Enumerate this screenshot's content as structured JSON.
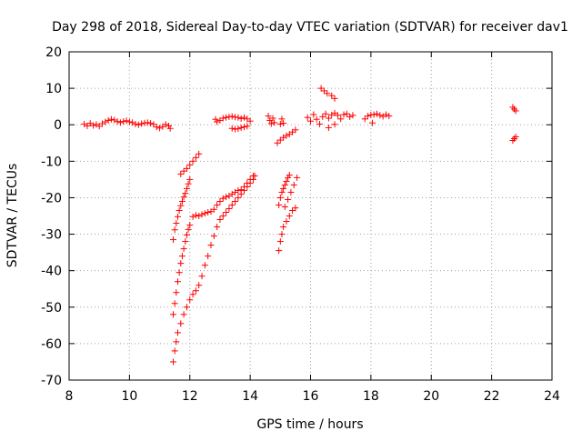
{
  "chart_data": {
    "type": "scatter",
    "title": "Day 298 of 2018, Sidereal Day-to-day VTEC variation (SDTVAR) for receiver dav1",
    "xlabel": "GPS time / hours",
    "ylabel": "SDTVAR / TECUs",
    "xlim": [
      8,
      24
    ],
    "ylim": [
      -70,
      20
    ],
    "x_ticks": [
      8,
      10,
      12,
      14,
      16,
      18,
      20,
      22,
      24
    ],
    "y_ticks": [
      -70,
      -60,
      -50,
      -40,
      -30,
      -20,
      -10,
      0,
      10,
      20
    ],
    "x_tick_labels": [
      "8",
      "10",
      "12",
      "14",
      "16",
      "18",
      "20",
      "22",
      "24"
    ],
    "y_tick_labels": [
      "-70",
      "-60",
      "-50",
      "-40",
      "-30",
      "-20",
      "-10",
      "0",
      "10",
      "20"
    ],
    "grid": true,
    "marker": "plus",
    "marker_color": "#ff0000",
    "series": [
      {
        "points": [
          [
            8.5,
            0.2
          ],
          [
            8.6,
            -0.3
          ],
          [
            8.7,
            0.4
          ],
          [
            8.8,
            -0.2
          ],
          [
            8.9,
            0.1
          ],
          [
            9.0,
            -0.4
          ],
          [
            9.1,
            0.3
          ],
          [
            9.2,
            0.8
          ],
          [
            9.3,
            1.2
          ],
          [
            9.4,
            1.5
          ],
          [
            9.5,
            1.3
          ],
          [
            9.6,
            0.9
          ],
          [
            9.7,
            0.6
          ],
          [
            9.8,
            0.9
          ],
          [
            9.9,
            1.1
          ],
          [
            10.0,
            0.8
          ],
          [
            10.1,
            0.6
          ],
          [
            10.2,
            0.2
          ],
          [
            10.3,
            0.0
          ],
          [
            10.4,
            0.3
          ],
          [
            10.5,
            0.5
          ],
          [
            10.6,
            0.6
          ],
          [
            10.7,
            0.4
          ],
          [
            10.8,
            0.1
          ],
          [
            10.9,
            -0.6
          ],
          [
            11.0,
            -0.9
          ],
          [
            11.1,
            -0.5
          ],
          [
            11.2,
            0.1
          ],
          [
            11.3,
            -0.3
          ],
          [
            11.35,
            -1.0
          ],
          [
            12.85,
            1.5
          ],
          [
            12.9,
            0.8
          ],
          [
            13.0,
            1.2
          ],
          [
            13.1,
            1.8
          ],
          [
            13.2,
            2.0
          ],
          [
            13.3,
            2.2
          ],
          [
            13.4,
            2.3
          ],
          [
            13.5,
            2.1
          ],
          [
            13.6,
            2.0
          ],
          [
            13.7,
            1.7
          ],
          [
            13.8,
            2.0
          ],
          [
            13.9,
            1.6
          ],
          [
            14.0,
            1.0
          ],
          [
            13.4,
            -1.0
          ],
          [
            13.5,
            -1.2
          ],
          [
            13.6,
            -1.1
          ],
          [
            13.7,
            -0.8
          ],
          [
            13.8,
            -0.6
          ],
          [
            13.9,
            -0.4
          ],
          [
            14.6,
            2.4
          ],
          [
            14.65,
            1.2
          ],
          [
            14.7,
            0.3
          ],
          [
            14.75,
            1.8
          ],
          [
            14.8,
            0.6
          ],
          [
            15.0,
            0.2
          ],
          [
            15.05,
            1.6
          ],
          [
            15.1,
            0.4
          ],
          [
            15.9,
            2.0
          ],
          [
            16.0,
            1.0
          ],
          [
            16.1,
            2.8
          ],
          [
            16.2,
            1.5
          ],
          [
            16.3,
            0.2
          ],
          [
            16.4,
            2.2
          ],
          [
            16.5,
            3.0
          ],
          [
            16.6,
            1.8
          ],
          [
            16.7,
            2.7
          ],
          [
            16.8,
            3.2
          ],
          [
            16.9,
            2.6
          ],
          [
            17.0,
            1.6
          ],
          [
            17.1,
            2.8
          ],
          [
            17.2,
            3.0
          ],
          [
            17.3,
            2.2
          ],
          [
            17.4,
            2.6
          ],
          [
            16.6,
            -0.8
          ],
          [
            16.8,
            0.1
          ],
          [
            17.8,
            1.6
          ],
          [
            17.9,
            2.4
          ],
          [
            18.0,
            2.7
          ],
          [
            18.1,
            2.8
          ],
          [
            18.2,
            3.0
          ],
          [
            18.3,
            2.6
          ],
          [
            18.4,
            2.3
          ],
          [
            18.5,
            2.8
          ],
          [
            18.6,
            2.4
          ],
          [
            18.05,
            0.5
          ],
          [
            16.35,
            10.0
          ],
          [
            16.45,
            9.3
          ],
          [
            16.55,
            8.6
          ],
          [
            16.7,
            8.0
          ],
          [
            16.8,
            7.2
          ],
          [
            22.7,
            4.8
          ],
          [
            22.75,
            4.3
          ],
          [
            22.8,
            3.8
          ],
          [
            22.7,
            -4.3
          ],
          [
            22.75,
            -3.8
          ],
          [
            22.8,
            -3.3
          ],
          [
            14.9,
            -5.0
          ],
          [
            15.0,
            -4.2
          ],
          [
            15.1,
            -3.5
          ],
          [
            15.2,
            -3.0
          ],
          [
            15.3,
            -2.6
          ],
          [
            15.4,
            -2.0
          ],
          [
            15.5,
            -1.4
          ],
          [
            11.7,
            -13.5
          ],
          [
            11.8,
            -12.7
          ],
          [
            11.9,
            -12.0
          ],
          [
            12.0,
            -11.0
          ],
          [
            12.1,
            -10.0
          ],
          [
            12.2,
            -9.0
          ],
          [
            12.3,
            -8.0
          ],
          [
            11.45,
            -31.5
          ],
          [
            11.5,
            -28.8
          ],
          [
            11.55,
            -27.0
          ],
          [
            11.6,
            -25.2
          ],
          [
            11.65,
            -23.5
          ],
          [
            11.7,
            -22.2
          ],
          [
            11.75,
            -21.0
          ],
          [
            11.8,
            -19.8
          ],
          [
            11.85,
            -18.8
          ],
          [
            11.9,
            -17.5
          ],
          [
            11.95,
            -16.2
          ],
          [
            12.0,
            -15.0
          ],
          [
            11.45,
            -52.0
          ],
          [
            11.5,
            -49.0
          ],
          [
            11.55,
            -46.0
          ],
          [
            11.6,
            -43.0
          ],
          [
            11.65,
            -40.5
          ],
          [
            11.7,
            -38.0
          ],
          [
            11.75,
            -36.0
          ],
          [
            11.8,
            -34.0
          ],
          [
            11.85,
            -32.0
          ],
          [
            11.9,
            -30.2
          ],
          [
            11.95,
            -28.7
          ],
          [
            12.0,
            -27.5
          ],
          [
            12.1,
            -25.2
          ],
          [
            12.2,
            -24.8
          ],
          [
            12.3,
            -25.0
          ],
          [
            12.4,
            -24.6
          ],
          [
            12.5,
            -24.3
          ],
          [
            12.6,
            -24.0
          ],
          [
            12.7,
            -23.8
          ],
          [
            12.8,
            -23.2
          ],
          [
            12.9,
            -22.0
          ],
          [
            13.0,
            -21.0
          ],
          [
            13.1,
            -20.2
          ],
          [
            13.2,
            -19.8
          ],
          [
            13.3,
            -19.5
          ],
          [
            13.4,
            -19.0
          ],
          [
            13.5,
            -18.5
          ],
          [
            13.6,
            -18.0
          ],
          [
            13.7,
            -17.8
          ],
          [
            13.8,
            -17.0
          ],
          [
            13.9,
            -16.0
          ],
          [
            14.0,
            -15.0
          ],
          [
            14.1,
            -14.0
          ],
          [
            11.45,
            -65.0
          ],
          [
            11.5,
            -62.0
          ],
          [
            11.55,
            -59.5
          ],
          [
            11.6,
            -57.0
          ],
          [
            11.7,
            -54.5
          ],
          [
            11.8,
            -52.0
          ],
          [
            11.9,
            -50.0
          ],
          [
            12.0,
            -48.0
          ],
          [
            12.1,
            -46.5
          ],
          [
            12.2,
            -45.5
          ],
          [
            12.3,
            -44.0
          ],
          [
            12.4,
            -41.5
          ],
          [
            12.5,
            -38.5
          ],
          [
            12.6,
            -36.0
          ],
          [
            12.7,
            -33.0
          ],
          [
            12.8,
            -30.5
          ],
          [
            12.9,
            -28.0
          ],
          [
            13.0,
            -26.0
          ],
          [
            13.1,
            -25.0
          ],
          [
            13.2,
            -24.0
          ],
          [
            13.3,
            -23.0
          ],
          [
            13.4,
            -22.0
          ],
          [
            13.5,
            -21.0
          ],
          [
            13.6,
            -20.0
          ],
          [
            13.7,
            -19.0
          ],
          [
            13.8,
            -18.0
          ],
          [
            13.9,
            -17.0
          ],
          [
            14.0,
            -16.0
          ],
          [
            14.1,
            -15.0
          ],
          [
            14.15,
            -14.0
          ],
          [
            14.95,
            -34.5
          ],
          [
            15.0,
            -32.0
          ],
          [
            15.05,
            -30.0
          ],
          [
            15.1,
            -28.0
          ],
          [
            15.2,
            -26.5
          ],
          [
            15.3,
            -25.0
          ],
          [
            15.4,
            -23.5
          ],
          [
            15.5,
            -22.8
          ],
          [
            14.95,
            -22.0
          ],
          [
            15.0,
            -20.0
          ],
          [
            15.05,
            -18.5
          ],
          [
            15.1,
            -17.5
          ],
          [
            15.15,
            -16.5
          ],
          [
            15.2,
            -15.5
          ],
          [
            15.25,
            -14.5
          ],
          [
            15.3,
            -13.8
          ],
          [
            15.15,
            -22.5
          ],
          [
            15.25,
            -20.5
          ],
          [
            15.35,
            -18.5
          ],
          [
            15.45,
            -16.5
          ],
          [
            15.55,
            -14.5
          ]
        ]
      }
    ]
  }
}
